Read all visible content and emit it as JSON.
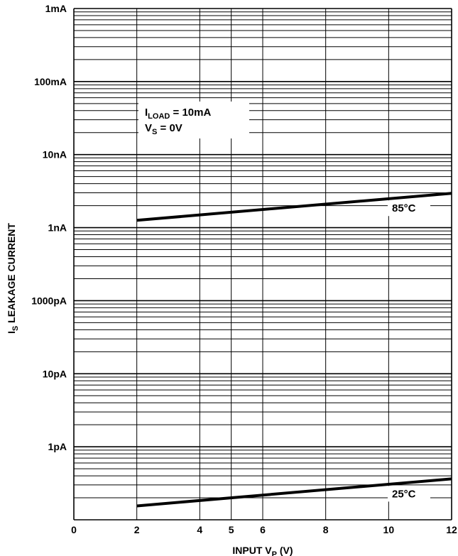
{
  "chart_data": {
    "type": "line",
    "xlabel_main": "INPUT V",
    "xlabel_sub": "P",
    "xlabel_unit": " (V)",
    "ylabel_main": "I",
    "ylabel_sub": "S",
    "ylabel_rest": " LEAKAGE CURRENT",
    "x_ticks": [
      "0",
      "2",
      "4",
      "5",
      "6",
      "8",
      "10",
      "12"
    ],
    "x_tick_values": [
      0,
      2,
      4,
      5,
      6,
      8,
      10,
      12
    ],
    "x_range": [
      0,
      12
    ],
    "y_ticks": [
      "1mA",
      "100mA",
      "10nA",
      "1nA",
      "1000pA",
      "10pA",
      "1pA"
    ],
    "y_decades": 7,
    "series": [
      {
        "name": "85°C",
        "x": [
          2,
          12
        ],
        "y_decade": [
          4.1,
          4.47
        ]
      },
      {
        "name": "25°C",
        "x": [
          2,
          12
        ],
        "y_decade": [
          0.19,
          0.56
        ]
      }
    ],
    "annotations": {
      "iload_main": "I",
      "iload_sub": "LOAD",
      "iload_rest": " = 10mA",
      "vs_main": "V",
      "vs_sub": "S",
      "vs_rest": " = 0V"
    },
    "grid": true
  }
}
